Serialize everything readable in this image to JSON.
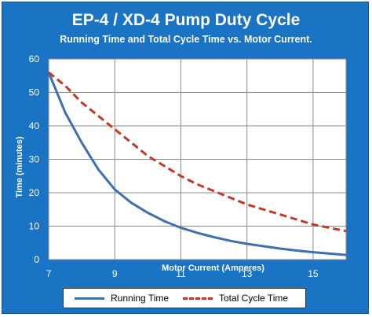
{
  "chart_data": {
    "type": "line",
    "title": "EP-4 / XD-4 Pump Duty Cycle",
    "subtitle": "Running Time and Total Cycle Time vs. Motor Current.",
    "xlabel": "Motor Current (Amperes)",
    "ylabel": "Time (minutes)",
    "xlim": [
      7,
      16
    ],
    "ylim": [
      0,
      60
    ],
    "x_ticks": [
      "7",
      "9",
      "11",
      "13",
      "15"
    ],
    "y_ticks": [
      "0",
      "10",
      "20",
      "30",
      "40",
      "50",
      "60"
    ],
    "grid": true,
    "legend_position": "bottom",
    "series": [
      {
        "name": "Running Time",
        "color": "#3f6fae",
        "style": "solid",
        "x": [
          7,
          7.5,
          8,
          8.5,
          9,
          9.5,
          10,
          10.5,
          11,
          11.5,
          12,
          12.5,
          13,
          13.5,
          14,
          14.5,
          15,
          15.5,
          16
        ],
        "y": [
          56,
          44,
          35,
          27,
          21,
          17,
          14,
          11.5,
          9.5,
          8,
          6.7,
          5.6,
          4.7,
          4,
          3.3,
          2.7,
          2.2,
          1.8,
          1.4
        ]
      },
      {
        "name": "Total Cycle Time",
        "color": "#c0392b",
        "style": "dashed",
        "x": [
          7,
          7.5,
          8,
          8.5,
          9,
          9.5,
          10,
          10.5,
          11,
          11.5,
          12,
          12.5,
          13,
          13.5,
          14,
          14.5,
          15,
          15.5,
          16
        ],
        "y": [
          56,
          52,
          47,
          43,
          39,
          35,
          31,
          28,
          25,
          22.5,
          20.5,
          18.5,
          16.5,
          15,
          13.5,
          12,
          10.5,
          9.5,
          8.5
        ]
      }
    ]
  }
}
